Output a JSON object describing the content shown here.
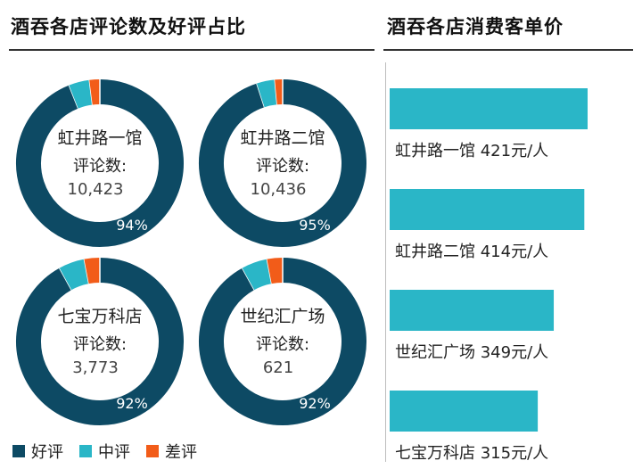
{
  "left_panel": {
    "title": "酒吞各店评论数及好评占比"
  },
  "right_panel": {
    "title": "酒吞各店消费客单价"
  },
  "colors": {
    "good": "#0d4a64",
    "mid": "#2ab6c7",
    "bad": "#f25c19"
  },
  "chart_data": [
    {
      "type": "pie",
      "subtype": "donut",
      "title": "酒吞各店评论数及好评占比",
      "legend": {
        "position": "bottom-left",
        "entries": [
          "好评",
          "中评",
          "差评"
        ]
      },
      "count_label": "评论数:",
      "stores": [
        {
          "name": "虹井路一馆",
          "reviews": "10,423",
          "good_pct_label": "94%",
          "good": 94,
          "mid": 4,
          "bad": 2
        },
        {
          "name": "虹井路二馆",
          "reviews": "10,436",
          "good_pct_label": "95%",
          "good": 95,
          "mid": 3.5,
          "bad": 1.5
        },
        {
          "name": "七宝万科店",
          "reviews": "3,773",
          "good_pct_label": "92%",
          "good": 92,
          "mid": 5,
          "bad": 3
        },
        {
          "name": "世纪汇广场",
          "reviews": "621",
          "good_pct_label": "92%",
          "good": 92,
          "mid": 5,
          "bad": 3
        }
      ]
    },
    {
      "type": "bar",
      "orientation": "horizontal",
      "title": "酒吞各店消费客单价",
      "categories": [
        "虹井路一馆",
        "虹井路二馆",
        "世纪汇广场",
        "七宝万科店"
      ],
      "values": [
        421,
        414,
        349,
        315
      ],
      "unit_label": "元/人",
      "xlim": [
        0,
        450
      ],
      "grid": false
    }
  ]
}
